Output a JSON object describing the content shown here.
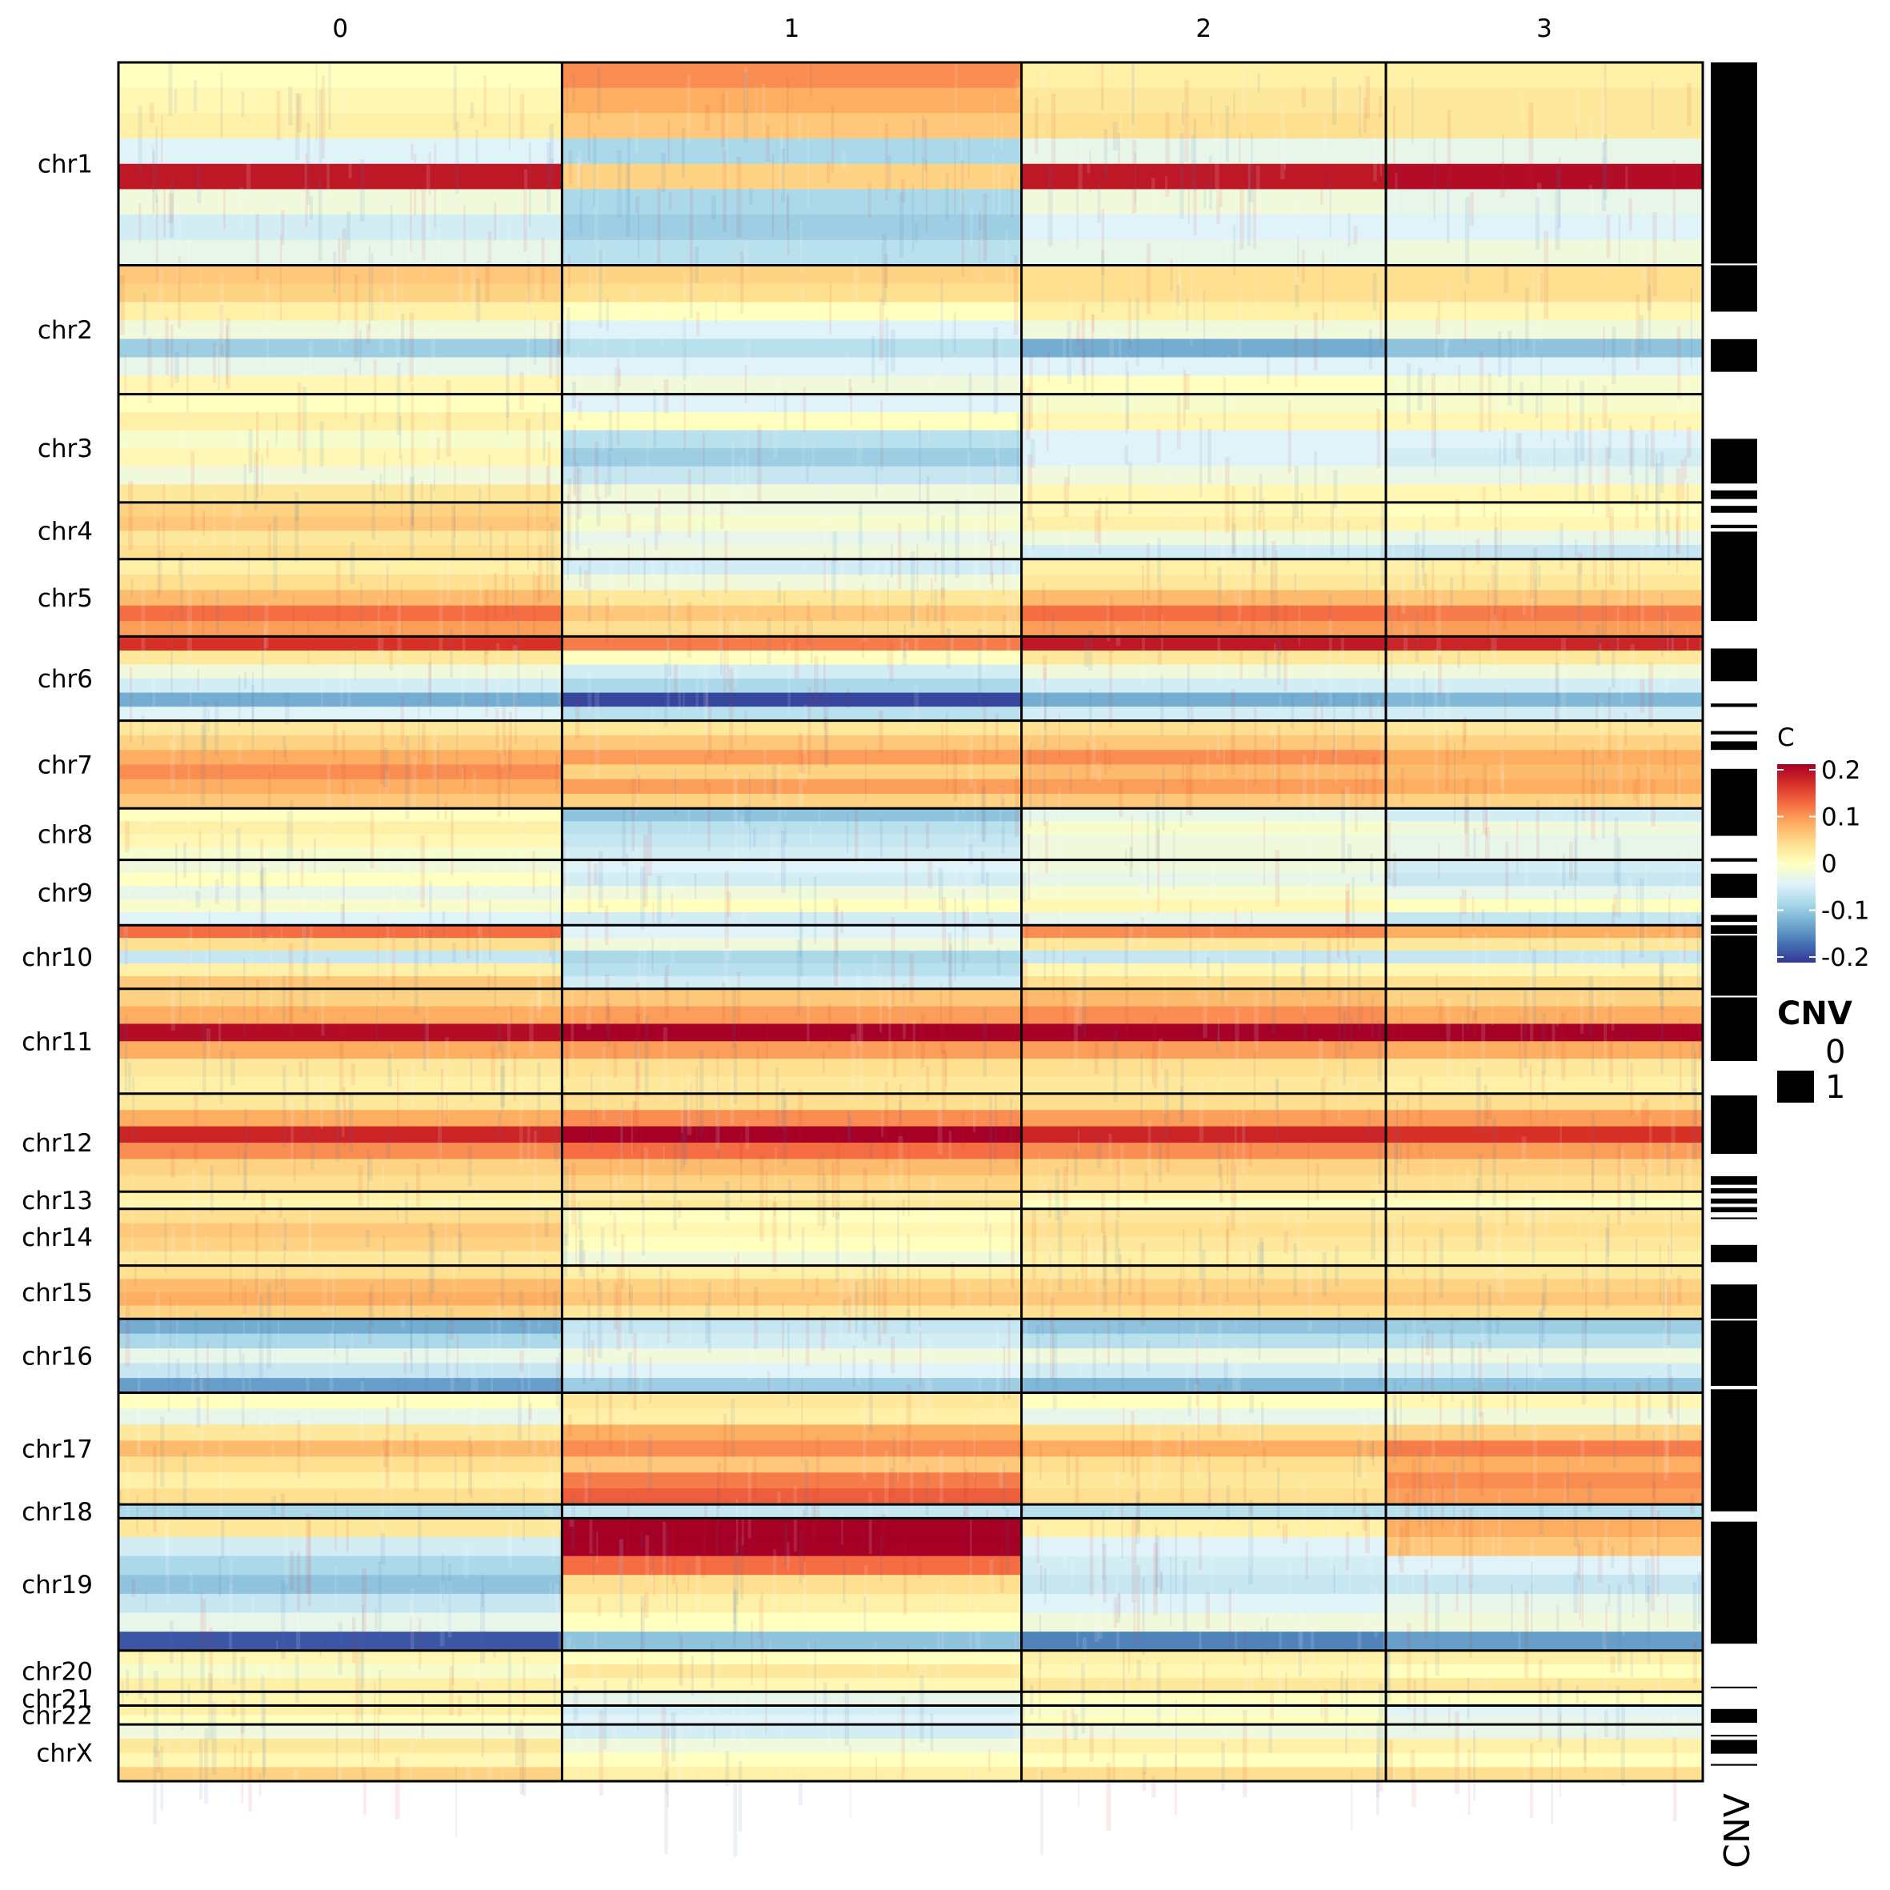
{
  "chart_data": {
    "type": "heatmap",
    "title": "",
    "xlabel": "",
    "ylabel": "",
    "columns": [
      "0",
      "1",
      "2",
      "3"
    ],
    "rows": [
      "chr1",
      "chr2",
      "chr3",
      "chr4",
      "chr5",
      "chr6",
      "chr7",
      "chr8",
      "chr9",
      "chr10",
      "chr11",
      "chr12",
      "chr13",
      "chr14",
      "chr15",
      "chr16",
      "chr17",
      "chr18",
      "chr19",
      "chr20",
      "chr21",
      "chr22",
      "chrX"
    ],
    "column_fraction": [
      0.28,
      0.29,
      0.23,
      0.2
    ],
    "row_fraction": [
      0.118,
      0.075,
      0.063,
      0.033,
      0.045,
      0.049,
      0.051,
      0.03,
      0.038,
      0.037,
      0.061,
      0.057,
      0.01,
      0.033,
      0.031,
      0.043,
      0.065,
      0.008,
      0.077,
      0.024,
      0.008,
      0.011,
      0.033
    ],
    "profiles": [
      [
        [
          0.0,
          0.01,
          0.02,
          -0.04,
          0.18,
          -0.02,
          -0.05,
          -0.03
        ],
        [
          0.1,
          0.08,
          0.06,
          -0.08,
          0.05,
          -0.08,
          -0.09,
          -0.07
        ],
        [
          0.02,
          0.03,
          0.04,
          -0.03,
          0.18,
          -0.02,
          -0.04,
          -0.03
        ],
        [
          0.02,
          0.03,
          0.03,
          -0.03,
          0.19,
          -0.03,
          -0.04,
          -0.02
        ]
      ],
      [
        [
          0.06,
          0.05,
          0.02,
          -0.02,
          -0.09,
          -0.03,
          0.01
        ],
        [
          0.05,
          0.04,
          0.0,
          -0.04,
          -0.07,
          -0.04,
          -0.02
        ],
        [
          0.04,
          0.04,
          0.02,
          -0.02,
          -0.12,
          -0.04,
          0.0
        ],
        [
          0.04,
          0.04,
          0.01,
          -0.02,
          -0.1,
          -0.04,
          -0.01
        ]
      ],
      [
        [
          0.0,
          0.02,
          -0.01,
          0.01,
          -0.02,
          0.03
        ],
        [
          -0.04,
          0.0,
          -0.07,
          -0.09,
          -0.06,
          -0.02
        ],
        [
          -0.01,
          0.01,
          -0.04,
          -0.04,
          -0.02,
          0.01
        ],
        [
          -0.01,
          0.01,
          -0.04,
          -0.05,
          -0.03,
          0.01
        ]
      ],
      [
        [
          0.05,
          0.06,
          0.03,
          0.04
        ],
        [
          -0.02,
          -0.01,
          -0.03,
          -0.02
        ],
        [
          0.01,
          0.02,
          -0.02,
          -0.05
        ],
        [
          0.0,
          0.01,
          -0.03,
          -0.06
        ]
      ],
      [
        [
          0.02,
          0.04,
          0.07,
          0.12,
          0.09
        ],
        [
          -0.05,
          -0.02,
          0.03,
          0.06,
          0.04
        ],
        [
          0.02,
          0.03,
          0.07,
          0.12,
          0.09
        ],
        [
          0.02,
          0.03,
          0.06,
          0.11,
          0.09
        ]
      ],
      [
        [
          0.16,
          0.03,
          -0.02,
          -0.05,
          -0.12,
          -0.04
        ],
        [
          0.11,
          0.0,
          -0.05,
          -0.08,
          -0.19,
          -0.07
        ],
        [
          0.18,
          0.03,
          -0.02,
          -0.05,
          -0.12,
          -0.05
        ],
        [
          0.17,
          0.03,
          -0.02,
          -0.05,
          -0.11,
          -0.05
        ]
      ],
      [
        [
          0.03,
          0.05,
          0.08,
          0.1,
          0.08,
          0.06
        ],
        [
          0.03,
          0.06,
          0.09,
          0.05,
          0.09,
          0.05
        ],
        [
          0.04,
          0.06,
          0.1,
          0.07,
          0.09,
          0.06
        ],
        [
          0.03,
          0.05,
          0.08,
          0.07,
          0.08,
          0.05
        ]
      ],
      [
        [
          0.0,
          0.02,
          0.01,
          -0.01
        ],
        [
          -0.1,
          -0.07,
          -0.06,
          -0.05
        ],
        [
          -0.03,
          -0.01,
          -0.02,
          -0.02
        ],
        [
          -0.05,
          -0.02,
          -0.03,
          -0.03
        ]
      ],
      [
        [
          -0.02,
          0.0,
          -0.03,
          -0.01,
          -0.04
        ],
        [
          -0.04,
          -0.05,
          -0.02,
          0.0,
          -0.05
        ],
        [
          -0.02,
          -0.03,
          -0.01,
          0.01,
          -0.03
        ],
        [
          -0.05,
          -0.06,
          -0.03,
          0.0,
          -0.06
        ]
      ],
      [
        [
          0.12,
          0.04,
          -0.06,
          0.02,
          0.06
        ],
        [
          -0.04,
          -0.02,
          -0.08,
          -0.07,
          -0.05
        ],
        [
          0.1,
          0.03,
          -0.06,
          0.01,
          0.04
        ],
        [
          0.08,
          0.03,
          -0.06,
          0.01,
          0.04
        ]
      ],
      [
        [
          0.05,
          0.08,
          0.19,
          0.08,
          0.03,
          0.02
        ],
        [
          0.06,
          0.09,
          0.22,
          0.09,
          0.04,
          0.03
        ],
        [
          0.07,
          0.1,
          0.21,
          0.09,
          0.04,
          0.03
        ],
        [
          0.05,
          0.08,
          0.2,
          0.08,
          0.03,
          0.02
        ]
      ],
      [
        [
          0.03,
          0.08,
          0.17,
          0.1,
          0.05,
          0.04
        ],
        [
          0.04,
          0.1,
          0.2,
          0.12,
          0.07,
          0.05
        ],
        [
          0.04,
          0.09,
          0.17,
          0.1,
          0.05,
          0.04
        ],
        [
          0.04,
          0.09,
          0.16,
          0.09,
          0.05,
          0.04
        ]
      ],
      [
        [
          0.02,
          0.01
        ],
        [
          0.02,
          0.03
        ],
        [
          0.01,
          0.0
        ],
        [
          0.01,
          0.0
        ]
      ],
      [
        [
          0.04,
          0.06,
          0.05,
          0.03
        ],
        [
          0.0,
          0.01,
          0.0,
          -0.02
        ],
        [
          0.03,
          0.04,
          0.03,
          0.02
        ],
        [
          0.03,
          0.04,
          0.03,
          0.02
        ]
      ],
      [
        [
          0.04,
          0.07,
          0.08,
          0.05
        ],
        [
          0.02,
          0.05,
          0.06,
          0.03
        ],
        [
          0.03,
          0.05,
          0.06,
          0.04
        ],
        [
          0.03,
          0.05,
          0.06,
          0.04
        ]
      ],
      [
        [
          -0.12,
          -0.08,
          -0.03,
          -0.06,
          -0.13
        ],
        [
          -0.06,
          -0.05,
          -0.02,
          -0.04,
          -0.09
        ],
        [
          -0.1,
          -0.07,
          -0.02,
          -0.05,
          -0.11
        ],
        [
          -0.09,
          -0.07,
          -0.02,
          -0.05,
          -0.1
        ]
      ],
      [
        [
          0.0,
          -0.03,
          0.03,
          0.07,
          0.04,
          0.02,
          0.04
        ],
        [
          0.03,
          0.02,
          0.08,
          0.1,
          0.06,
          0.11,
          0.13
        ],
        [
          0.0,
          -0.03,
          0.04,
          0.08,
          0.04,
          0.03,
          0.04
        ],
        [
          0.01,
          -0.02,
          0.05,
          0.11,
          0.08,
          0.1,
          0.09
        ]
      ],
      [
        [
          -0.08
        ],
        [
          -0.06
        ],
        [
          -0.07
        ],
        [
          -0.07
        ]
      ],
      [
        [
          0.03,
          -0.05,
          -0.08,
          -0.1,
          -0.06,
          -0.03,
          -0.18
        ],
        [
          0.2,
          0.21,
          0.12,
          0.04,
          0.02,
          0.0,
          -0.1
        ],
        [
          0.02,
          -0.04,
          -0.05,
          -0.06,
          -0.04,
          -0.02,
          -0.15
        ],
        [
          0.08,
          0.06,
          -0.04,
          -0.06,
          -0.03,
          -0.02,
          -0.13
        ]
      ],
      [
        [
          0.01,
          -0.01,
          0.02
        ],
        [
          0.0,
          0.03,
          0.01
        ],
        [
          0.02,
          0.01,
          0.03
        ],
        [
          0.02,
          0.0,
          0.03
        ]
      ],
      [
        [
          0.01
        ],
        [
          -0.03
        ],
        [
          0.0
        ],
        [
          0.0
        ]
      ],
      [
        [
          0.02,
          0.0
        ],
        [
          -0.05,
          -0.04
        ],
        [
          -0.01,
          0.0
        ],
        [
          -0.04,
          -0.03
        ]
      ],
      [
        [
          -0.02,
          0.03,
          0.01,
          0.05
        ],
        [
          -0.05,
          -0.02,
          0.0,
          0.02
        ],
        [
          -0.02,
          0.02,
          0.0,
          0.04
        ],
        [
          -0.03,
          0.02,
          0.0,
          0.04
        ]
      ]
    ],
    "legend_color": {
      "title": "C",
      "ticks": [
        "0.2",
        "0.1",
        "0",
        "-0.1",
        "-0.2"
      ],
      "range": [
        -0.2,
        0.2
      ],
      "colors": [
        "#313695",
        "#4575b4",
        "#74add1",
        "#abd9e9",
        "#e0f3f8",
        "#ffffbf",
        "#fee090",
        "#fdae61",
        "#f46d43",
        "#d73027",
        "#a50026"
      ]
    },
    "cnv_annotation": {
      "label": "CNV",
      "legend_title": "CNV",
      "legend_items": [
        {
          "label": "0",
          "color": "#ffffff"
        },
        {
          "label": "1",
          "color": "#000000"
        }
      ],
      "segments": [
        [
          0.0,
          0.117
        ],
        [
          0.118,
          0.145
        ],
        [
          0.161,
          0.18
        ],
        [
          0.219,
          0.245
        ],
        [
          0.249,
          0.254
        ],
        [
          0.258,
          0.262
        ],
        [
          0.269,
          0.271
        ],
        [
          0.273,
          0.325
        ],
        [
          0.341,
          0.36
        ],
        [
          0.373,
          0.375
        ],
        [
          0.389,
          0.391
        ],
        [
          0.395,
          0.4
        ],
        [
          0.411,
          0.45
        ],
        [
          0.463,
          0.465
        ],
        [
          0.472,
          0.486
        ],
        [
          0.496,
          0.5
        ],
        [
          0.502,
          0.507
        ],
        [
          0.508,
          0.543
        ],
        [
          0.544,
          0.581
        ],
        [
          0.601,
          0.635
        ],
        [
          0.648,
          0.653
        ],
        [
          0.655,
          0.658
        ],
        [
          0.661,
          0.664
        ],
        [
          0.666,
          0.669
        ],
        [
          0.672,
          0.673
        ],
        [
          0.688,
          0.698
        ],
        [
          0.711,
          0.731
        ],
        [
          0.732,
          0.77
        ],
        [
          0.772,
          0.843
        ],
        [
          0.849,
          0.92
        ],
        [
          0.945,
          0.946
        ],
        [
          0.958,
          0.966
        ],
        [
          0.973,
          0.974
        ],
        [
          0.976,
          0.984
        ],
        [
          0.99,
          0.991
        ]
      ]
    },
    "grid": false,
    "legend_placement": "right"
  }
}
